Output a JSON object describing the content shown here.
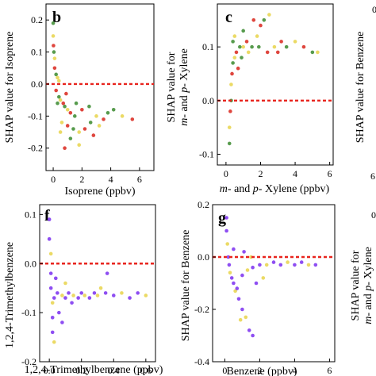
{
  "chart_data": [
    {
      "panel": "b",
      "type": "scatter",
      "xlabel": "Isoprene (ppbv)",
      "ylabel": "SHAP value for Isoprene",
      "xlim": [
        -0.5,
        7
      ],
      "ylim": [
        -0.27,
        0.25
      ],
      "xticks": [
        0,
        2,
        4,
        6
      ],
      "yticks": [
        -0.2,
        -0.1,
        0.0,
        0.1,
        0.2
      ],
      "ytick_labels": [
        "-0.2",
        "-0.1",
        "0.0",
        "0.1",
        "0.2"
      ],
      "reference_line": 0.0,
      "points": [
        [
          0,
          0.19
        ],
        [
          0,
          0.15
        ],
        [
          0.02,
          0.12
        ],
        [
          0.05,
          0.1
        ],
        [
          0.1,
          0.08
        ],
        [
          0.1,
          0.05
        ],
        [
          0.2,
          0.03
        ],
        [
          0.3,
          0.02
        ],
        [
          0.2,
          -0.02
        ],
        [
          0.4,
          -0.04
        ],
        [
          0.5,
          -0.05
        ],
        [
          0.7,
          -0.06
        ],
        [
          0.8,
          -0.07
        ],
        [
          1.0,
          -0.08
        ],
        [
          1.2,
          -0.09
        ],
        [
          1.5,
          -0.1
        ],
        [
          0.6,
          -0.12
        ],
        [
          1.0,
          -0.13
        ],
        [
          1.4,
          -0.14
        ],
        [
          1.8,
          -0.15
        ],
        [
          2.2,
          -0.14
        ],
        [
          2.6,
          -0.12
        ],
        [
          3.0,
          -0.1
        ],
        [
          3.5,
          -0.11
        ],
        [
          4.2,
          -0.08
        ],
        [
          4.8,
          -0.1
        ],
        [
          5.5,
          -0.11
        ],
        [
          1.2,
          -0.17
        ],
        [
          1.8,
          -0.19
        ],
        [
          0.8,
          -0.2
        ],
        [
          0.3,
          -0.06
        ],
        [
          0.4,
          0.01
        ],
        [
          2.0,
          -0.08
        ],
        [
          2.5,
          -0.07
        ],
        [
          3.2,
          -0.13
        ],
        [
          0.9,
          -0.03
        ],
        [
          1.6,
          -0.06
        ],
        [
          0.5,
          -0.15
        ],
        [
          2.8,
          -0.16
        ],
        [
          3.8,
          -0.09
        ]
      ]
    },
    {
      "panel": "c",
      "type": "scatter",
      "xlabel": "m- and p- Xylene (ppbv)",
      "ylabel": "SHAP value for m- and p- Xylene",
      "xlim": [
        -0.5,
        6.2
      ],
      "ylim": [
        -0.12,
        0.18
      ],
      "xticks": [
        0,
        2,
        4,
        6
      ],
      "yticks": [
        -0.1,
        0.0,
        0.1
      ],
      "ytick_labels": [
        "-0.1",
        "0.0",
        "0.1"
      ],
      "reference_line": 0.0,
      "points": [
        [
          0.2,
          -0.08
        ],
        [
          0.2,
          -0.05
        ],
        [
          0.25,
          -0.02
        ],
        [
          0.3,
          0.0
        ],
        [
          0.3,
          0.03
        ],
        [
          0.35,
          0.05
        ],
        [
          0.4,
          0.07
        ],
        [
          0.5,
          0.08
        ],
        [
          0.6,
          0.09
        ],
        [
          0.8,
          0.1
        ],
        [
          1.0,
          0.1
        ],
        [
          1.2,
          0.11
        ],
        [
          1.5,
          0.1
        ],
        [
          1.8,
          0.12
        ],
        [
          2.0,
          0.14
        ],
        [
          2.2,
          0.15
        ],
        [
          2.5,
          0.16
        ],
        [
          1.6,
          0.15
        ],
        [
          1.0,
          0.13
        ],
        [
          2.8,
          0.1
        ],
        [
          3.0,
          0.09
        ],
        [
          3.5,
          0.1
        ],
        [
          4.0,
          0.11
        ],
        [
          4.5,
          0.1
        ],
        [
          5.0,
          0.09
        ],
        [
          5.3,
          0.09
        ],
        [
          0.7,
          0.06
        ],
        [
          0.9,
          0.08
        ],
        [
          1.3,
          0.09
        ],
        [
          2.4,
          0.09
        ],
        [
          0.4,
          0.11
        ],
        [
          0.5,
          0.12
        ],
        [
          3.2,
          0.11
        ],
        [
          1.9,
          0.1
        ]
      ]
    },
    {
      "panel": "f",
      "type": "scatter",
      "xlabel": "1,2,4-Trimethylbenzene (ppbv)",
      "ylabel": "1,2,4-Trimethylbenzene",
      "xlim": [
        -0.06,
        0.66
      ],
      "ylim": [
        -0.2,
        0.12
      ],
      "xticks": [
        0.0,
        0.2,
        0.4,
        0.6
      ],
      "yticks": [
        -0.2,
        -0.1,
        0.0,
        0.1
      ],
      "ytick_labels": [
        "-0.2",
        "-0.1",
        "0.0",
        "0.1"
      ],
      "reference_line": 0.0,
      "points": [
        [
          0.0,
          0.09
        ],
        [
          0.0,
          0.05
        ],
        [
          0.01,
          0.02
        ],
        [
          0.01,
          -0.02
        ],
        [
          0.01,
          -0.05
        ],
        [
          0.02,
          -0.08
        ],
        [
          0.02,
          -0.11
        ],
        [
          0.02,
          -0.14
        ],
        [
          0.03,
          -0.16
        ],
        [
          0.03,
          -0.07
        ],
        [
          0.05,
          -0.06
        ],
        [
          0.08,
          -0.065
        ],
        [
          0.1,
          -0.07
        ],
        [
          0.12,
          -0.06
        ],
        [
          0.15,
          -0.065
        ],
        [
          0.18,
          -0.07
        ],
        [
          0.2,
          -0.06
        ],
        [
          0.22,
          -0.065
        ],
        [
          0.25,
          -0.07
        ],
        [
          0.28,
          -0.06
        ],
        [
          0.3,
          -0.065
        ],
        [
          0.35,
          -0.06
        ],
        [
          0.4,
          -0.065
        ],
        [
          0.45,
          -0.06
        ],
        [
          0.5,
          -0.07
        ],
        [
          0.55,
          -0.06
        ],
        [
          0.6,
          -0.065
        ],
        [
          0.06,
          -0.1
        ],
        [
          0.08,
          -0.12
        ],
        [
          0.1,
          -0.04
        ],
        [
          0.04,
          -0.03
        ],
        [
          0.14,
          -0.08
        ],
        [
          0.32,
          -0.05
        ],
        [
          0.36,
          -0.02
        ]
      ]
    },
    {
      "panel": "g",
      "type": "scatter",
      "xlabel": "Benzene (ppbv)",
      "ylabel": "SHAP value for Benzene",
      "xlim": [
        -0.7,
        6.3
      ],
      "ylim": [
        -0.4,
        0.2
      ],
      "xticks": [
        0,
        2,
        4,
        6
      ],
      "yticks": [
        -0.4,
        -0.2,
        0.0,
        0.2
      ],
      "ytick_labels": [
        "-0.4",
        "-0.2",
        "0.0",
        "0.2"
      ],
      "reference_line": 0.0,
      "points": [
        [
          0.1,
          0.15
        ],
        [
          0.1,
          0.1
        ],
        [
          0.15,
          0.05
        ],
        [
          0.2,
          0.0
        ],
        [
          0.25,
          -0.03
        ],
        [
          0.3,
          -0.06
        ],
        [
          0.4,
          -0.08
        ],
        [
          0.5,
          -0.1
        ],
        [
          0.6,
          -0.13
        ],
        [
          0.8,
          -0.16
        ],
        [
          1.0,
          -0.2
        ],
        [
          1.2,
          -0.23
        ],
        [
          1.4,
          -0.28
        ],
        [
          1.6,
          -0.3
        ],
        [
          0.9,
          -0.24
        ],
        [
          0.7,
          -0.12
        ],
        [
          1.0,
          -0.07
        ],
        [
          1.3,
          -0.05
        ],
        [
          1.6,
          -0.04
        ],
        [
          2.0,
          -0.03
        ],
        [
          2.4,
          -0.03
        ],
        [
          2.8,
          -0.02
        ],
        [
          3.2,
          -0.03
        ],
        [
          3.6,
          -0.02
        ],
        [
          4.0,
          -0.03
        ],
        [
          4.4,
          -0.02
        ],
        [
          4.8,
          -0.03
        ],
        [
          5.2,
          -0.03
        ],
        [
          1.1,
          0.02
        ],
        [
          1.5,
          0.0
        ],
        [
          0.5,
          0.03
        ],
        [
          1.8,
          -0.1
        ],
        [
          2.2,
          -0.08
        ]
      ]
    }
  ],
  "partial_labels": {
    "top_right_ylabel": "SHAP value for Benzene",
    "bottom_right_ylabel_line1": "SHAP value for",
    "bottom_right_ylabel_line2": "m- and p- Xylene",
    "top_right_tick": "0",
    "bottom_right_tick": "0",
    "c_xtick_cut": "6"
  },
  "colors": {
    "line": "#e8241d",
    "low": "#7a2ff0",
    "mid": "#e8d44a",
    "high": "#d9261c",
    "green": "#3a8a2e"
  }
}
